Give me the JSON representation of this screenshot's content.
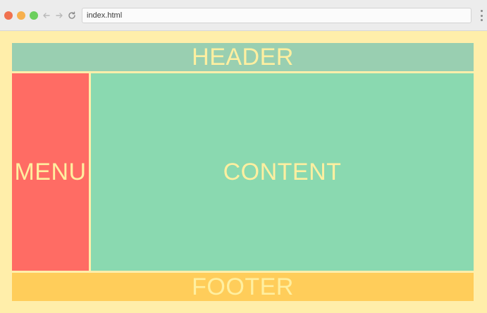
{
  "browser": {
    "url": "index.html"
  },
  "layout": {
    "header": "HEADER",
    "menu": "MENU",
    "content": "CONTENT",
    "footer": "FOOTER"
  },
  "colors": {
    "page_bg": "#ffeeaa",
    "header": "#99cfb1",
    "menu": "#ff6c64",
    "content": "#8ad9b0",
    "footer": "#ffcd5a",
    "label_text": "#ffefa0"
  }
}
